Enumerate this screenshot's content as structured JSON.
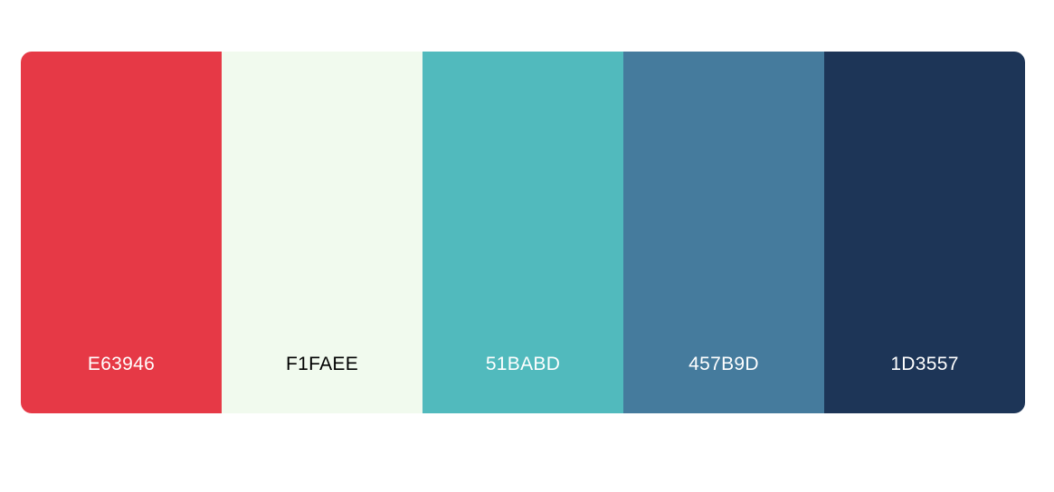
{
  "palette": {
    "swatches": [
      {
        "label": "E63946",
        "color": "#E63946",
        "text_color": "#FFFFFF"
      },
      {
        "label": "F1FAEE",
        "color": "#F1FAEE",
        "text_color": "#000000"
      },
      {
        "label": "51BABD",
        "color": "#51BABD",
        "text_color": "#FFFFFF"
      },
      {
        "label": "457B9D",
        "color": "#457B9D",
        "text_color": "#FFFFFF"
      },
      {
        "label": "1D3557",
        "color": "#1D3557",
        "text_color": "#FFFFFF"
      }
    ]
  }
}
